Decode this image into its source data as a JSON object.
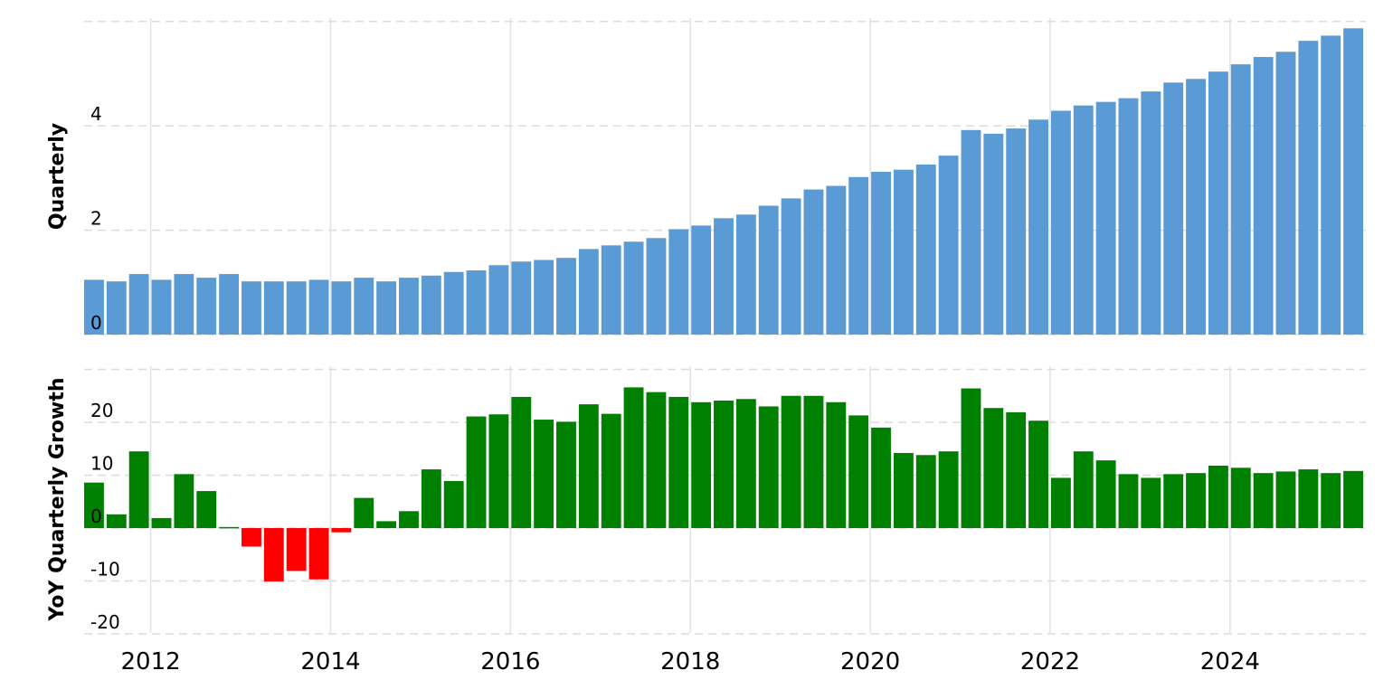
{
  "chart_data": [
    {
      "type": "bar",
      "ylabel": "Quarterly",
      "ylim": [
        0,
        6
      ],
      "yticks": [
        0,
        2,
        4
      ],
      "grid": true,
      "color": "#5b9bd5",
      "x_start": "2011-Q2",
      "frequency": "quarterly",
      "x_tick_labels": [
        "2012",
        "2014",
        "2016",
        "2018",
        "2020",
        "2022",
        "2024"
      ],
      "values": [
        1.05,
        1.02,
        1.16,
        1.05,
        1.16,
        1.09,
        1.16,
        1.02,
        1.02,
        1.02,
        1.05,
        1.02,
        1.09,
        1.02,
        1.09,
        1.13,
        1.2,
        1.23,
        1.33,
        1.4,
        1.43,
        1.47,
        1.64,
        1.71,
        1.78,
        1.85,
        2.02,
        2.09,
        2.23,
        2.3,
        2.47,
        2.61,
        2.78,
        2.85,
        3.02,
        3.12,
        3.16,
        3.26,
        3.43,
        3.92,
        3.85,
        3.95,
        4.12,
        4.29,
        4.39,
        4.46,
        4.53,
        4.66,
        4.83,
        4.9,
        5.04,
        5.18,
        5.32,
        5.42,
        5.63,
        5.73,
        5.87
      ]
    },
    {
      "type": "bar",
      "ylabel": "YoY Quarterly Growth",
      "ylim": [
        -20,
        30
      ],
      "yticks": [
        -20,
        -10,
        0,
        10,
        20
      ],
      "grid": true,
      "positive_color": "#008000",
      "negative_color": "#ff0000",
      "x_start": "2011-Q2",
      "frequency": "quarterly",
      "x_tick_labels": [
        "2012",
        "2014",
        "2016",
        "2018",
        "2020",
        "2022",
        "2024"
      ],
      "values": [
        8.6,
        2.6,
        14.5,
        1.9,
        10.2,
        7.0,
        0.2,
        -3.5,
        -10.1,
        -8.1,
        -9.7,
        -0.8,
        5.7,
        1.3,
        3.2,
        11.1,
        8.9,
        21.1,
        21.5,
        24.8,
        20.5,
        20.1,
        23.4,
        21.6,
        26.6,
        25.7,
        24.8,
        23.8,
        24.1,
        24.4,
        23.0,
        25.0,
        25.0,
        23.8,
        21.3,
        19.0,
        14.2,
        13.8,
        14.5,
        26.4,
        22.7,
        21.9,
        20.3,
        9.5,
        14.5,
        12.8,
        10.2,
        9.5,
        10.2,
        10.4,
        11.8,
        11.4,
        10.4,
        10.7,
        11.1,
        10.4,
        10.8
      ]
    }
  ]
}
